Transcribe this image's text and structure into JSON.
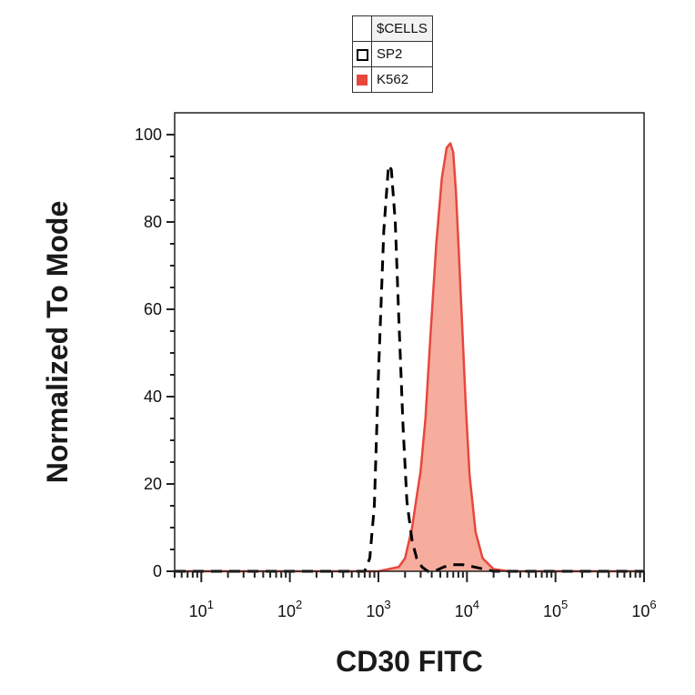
{
  "legend": {
    "title": "$CELLS",
    "items": [
      {
        "label": "SP2",
        "swatch": "open-square",
        "color": "#000000"
      },
      {
        "label": "K562",
        "swatch": "filled-square",
        "color": "#e8473c"
      }
    ]
  },
  "chart_data": {
    "type": "area",
    "xlabel": "CD30 FITC",
    "ylabel": "Normalized To Mode",
    "xscale": "log",
    "xlim": [
      5,
      1000000
    ],
    "ylim": [
      0,
      105
    ],
    "yticks": [
      0,
      20,
      40,
      60,
      80,
      100
    ],
    "xticks": [
      {
        "value": 10,
        "base": "10",
        "exp": "1"
      },
      {
        "value": 100,
        "base": "10",
        "exp": "2"
      },
      {
        "value": 1000,
        "base": "10",
        "exp": "3"
      },
      {
        "value": 10000,
        "base": "10",
        "exp": "4"
      },
      {
        "value": 100000,
        "base": "10",
        "exp": "5"
      },
      {
        "value": 1000000,
        "base": "10",
        "exp": "6"
      }
    ],
    "series": [
      {
        "name": "SP2",
        "style": "dashed-line",
        "color": "#000000",
        "x": [
          5,
          300,
          700,
          800,
          900,
          1000,
          1150,
          1300,
          1400,
          1550,
          1700,
          1900,
          2100,
          2400,
          2700,
          3100,
          3600,
          4300,
          5500,
          7000,
          9000,
          12000,
          20000,
          100000,
          1000000
        ],
        "y": [
          0,
          0,
          0,
          3,
          15,
          45,
          78,
          93,
          92,
          80,
          58,
          33,
          16,
          7,
          3,
          1,
          0,
          0,
          1,
          1.5,
          1.5,
          1,
          0,
          0,
          0
        ]
      },
      {
        "name": "K562",
        "style": "filled-area",
        "color": "#e8473c",
        "fill": "#f6ad9e",
        "x": [
          5,
          1000,
          1700,
          2000,
          2400,
          2700,
          3000,
          3400,
          3900,
          4500,
          5200,
          5900,
          6500,
          7000,
          7500,
          8100,
          8800,
          9700,
          10700,
          12500,
          15000,
          20000,
          30000,
          1000000
        ],
        "y": [
          0,
          0,
          1,
          3,
          10,
          17,
          23,
          35,
          55,
          75,
          90,
          97,
          98,
          96,
          87,
          73,
          57,
          38,
          22,
          9,
          3,
          0.5,
          0,
          0
        ]
      }
    ]
  }
}
